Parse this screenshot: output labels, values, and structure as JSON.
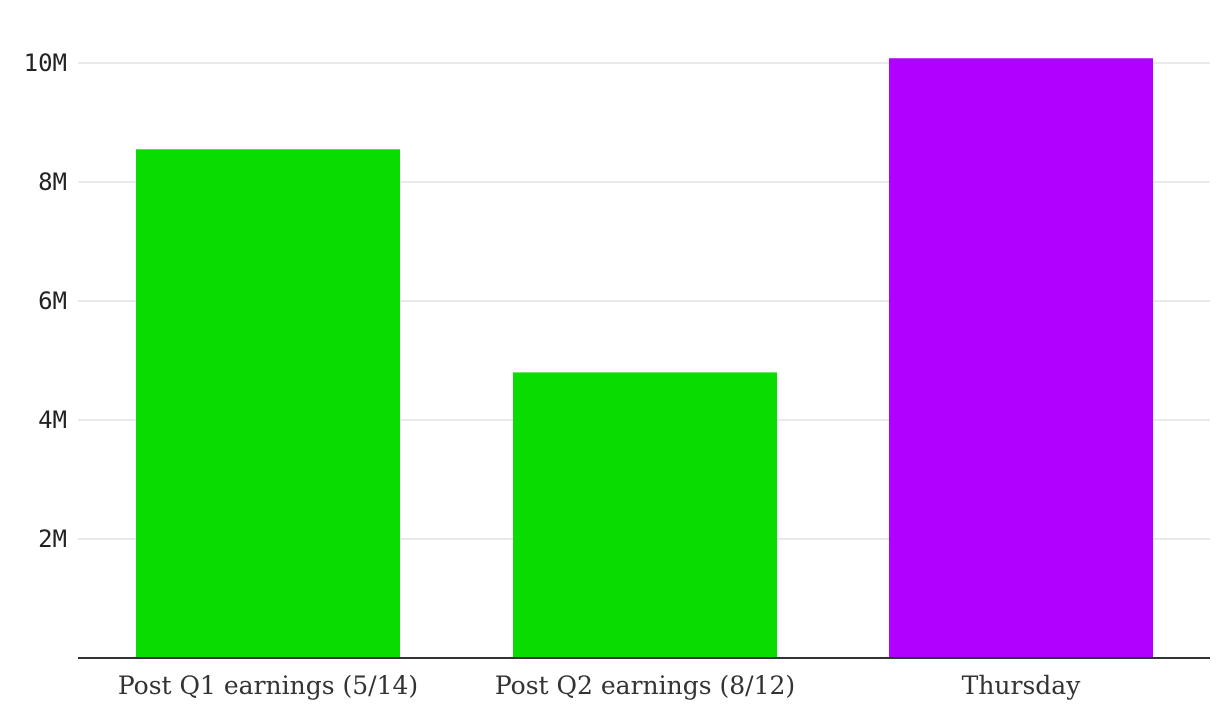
{
  "chart_data": {
    "type": "bar",
    "title": "",
    "xlabel": "",
    "ylabel": "",
    "categories": [
      "Post Q1 earnings (5/14)",
      "Post Q2 earnings (8/12)",
      "Thursday"
    ],
    "values": [
      8550000,
      4800000,
      10080000
    ],
    "ylim": [
      0,
      10000000
    ],
    "yticks": [
      2000000,
      4000000,
      6000000,
      8000000,
      10000000
    ],
    "ytick_labels": [
      "2M",
      "4M",
      "6M",
      "8M",
      "10M"
    ],
    "grid": true,
    "legend": "none",
    "bar_colors": [
      "#08dc00",
      "#08dc00",
      "#b000ff"
    ],
    "grid_color": "#e3e3e3",
    "axis_color": "#333333"
  }
}
